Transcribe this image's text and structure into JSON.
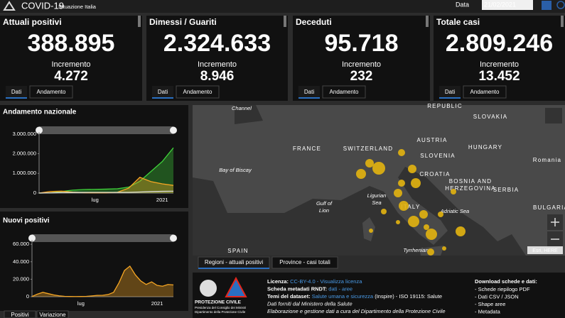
{
  "header": {
    "title": "COVID-19",
    "subtitle": "Situazione Italia",
    "date_label": "Data",
    "date": "21/02/2021"
  },
  "cards": [
    {
      "title": "Attuali positivi",
      "value": "388.895",
      "delta_label": "Incremento",
      "delta": "4.272",
      "color": "#f6a623",
      "tabs": [
        "Dati",
        "Andamento"
      ]
    },
    {
      "title": "Dimessi / Guariti",
      "value": "2.324.633",
      "delta_label": "Incremento",
      "delta": "8.946",
      "color": "#3fd13a",
      "tabs": [
        "Dati",
        "Andamento"
      ]
    },
    {
      "title": "Deceduti",
      "value": "95.718",
      "delta_label": "Incremento",
      "delta": "232",
      "color": "#b9b9b9",
      "tabs": [
        "Dati",
        "Andamento"
      ]
    },
    {
      "title": "Totale casi",
      "value": "2.809.246",
      "delta_label": "Incremento",
      "delta": "13.452",
      "color": "#e3261d",
      "tabs": [
        "Dati",
        "Andamento"
      ]
    }
  ],
  "charts": [
    {
      "type": "line",
      "title": "Andamento nazionale",
      "ylim": [
        0,
        3100000
      ],
      "yticks": [
        0,
        {
          "value": 1000000,
          "label": "1.000.000"
        },
        {
          "value": 2000000,
          "label": "2.000.000"
        },
        {
          "value": 3000000,
          "label": "3.000.000"
        }
      ],
      "categories": [
        null,
        null,
        null,
        null,
        null,
        "lug",
        null,
        null,
        null,
        null,
        null,
        "2021",
        null
      ],
      "series": [
        {
          "color": "#3fd13a",
          "area": true,
          "values": [
            0,
            10000,
            80000,
            150000,
            180000,
            190000,
            200000,
            220000,
            300000,
            600000,
            1100000,
            1600000,
            2300000
          ]
        },
        {
          "color": "#f6a623",
          "area": true,
          "values": [
            0,
            80000,
            100000,
            50000,
            20000,
            13000,
            15000,
            40000,
            250000,
            800000,
            580000,
            470000,
            390000
          ]
        },
        {
          "color": "#dddddd",
          "area": false,
          "values": [
            0,
            10000,
            28000,
            33000,
            34500,
            35000,
            35400,
            35800,
            37000,
            55000,
            74000,
            88000,
            95700
          ]
        }
      ]
    },
    {
      "type": "line",
      "title": "Nuovi positivi",
      "ylim": [
        0,
        65000
      ],
      "yticks": [
        0,
        {
          "value": 20000,
          "label": "20.000"
        },
        {
          "value": 40000,
          "label": "40.000"
        },
        {
          "value": 60000,
          "label": "60.000"
        }
      ],
      "categories": [
        null,
        null,
        null,
        null,
        null,
        null,
        null,
        null,
        null,
        "lug",
        null,
        null,
        null,
        null,
        null,
        null,
        null,
        null,
        null,
        null,
        null,
        null,
        null,
        "2021",
        null,
        null,
        null
      ],
      "series": [
        {
          "color": "#f6a623",
          "area": true,
          "values": [
            200,
            3000,
            5000,
            3500,
            2000,
            1000,
            400,
            250,
            200,
            250,
            400,
            900,
            1500,
            1600,
            2500,
            5000,
            16000,
            30000,
            35000,
            25000,
            18000,
            14000,
            17000,
            13000,
            12000,
            14000,
            13500
          ]
        }
      ]
    }
  ],
  "left_tabs": [
    "Positivi",
    "Variazione"
  ],
  "map": {
    "labels": [
      "Channel",
      "FRANCE",
      "SWITZERLAND",
      "AUSTRIA",
      "HUNGARY",
      "SLOVAKIA",
      "REPUBLIC",
      "SLOVENIA",
      "CROATIA",
      "BOSNIA AND",
      "HERZEGOVINA",
      "SERBIA",
      "Romania",
      "BULGARIA",
      "Bay of Biscay",
      "Gulf of",
      "Lion",
      "Ligurian",
      "Sea",
      "ITALY",
      "Adriatic Sea",
      "Tyrrhenian",
      "SPAIN"
    ],
    "bubbles": [
      55000,
      24400,
      33200,
      17000,
      24400,
      33200,
      17000,
      24400,
      33200,
      24400,
      43400,
      43400,
      10900,
      33200,
      17000,
      10900,
      10900,
      6100,
      10900,
      6100,
      6100
    ],
    "attribution": "Esri, HERE",
    "tabs": [
      "Regioni - attuali positivi",
      "Province - casi totali"
    ]
  },
  "footer": {
    "logo": "PROTEZIONE CIVILE",
    "caption": [
      "Presidenza del Consiglio dei Ministri",
      "Dipartimento della Protezione Civile"
    ],
    "info": [
      [
        {
          "text": "Licenza: ",
          "kind": "label"
        },
        {
          "text": "CC-BY-4.0 - Visualizza licenza",
          "kind": "link"
        }
      ],
      [
        {
          "text": "Scheda metadati RNDT: ",
          "kind": "label"
        },
        {
          "text": "dati - aree",
          "kind": "link"
        }
      ],
      [
        {
          "text": "Temi del dataset: ",
          "kind": "label"
        },
        {
          "text": "Salute umana e sicurezza",
          "kind": "link"
        },
        {
          "text": " (Inspire) - ISO 19115: Salute",
          "kind": "plain"
        }
      ],
      [
        {
          "text": "Dati forniti dal Ministero della Salute",
          "kind": "italic"
        }
      ],
      [
        {
          "text": "Elaborazione e gestione dati a cura del Dipartimento della Protezione Civile",
          "kind": "italic"
        }
      ]
    ],
    "downloads_title": "Download schede e dati:",
    "downloads": [
      "- Schede riepilogo PDF",
      "- Dati CSV / JSON",
      "- Shape aree",
      "- Metadata"
    ]
  }
}
